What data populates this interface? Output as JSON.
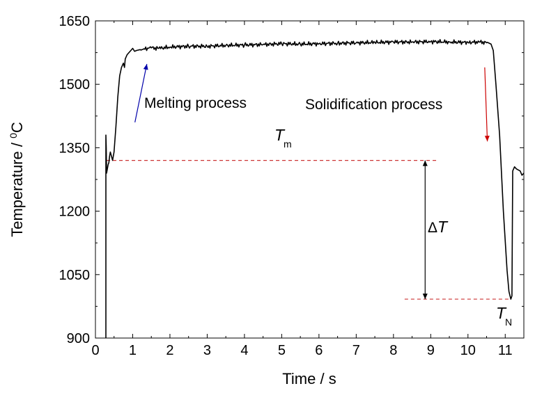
{
  "chart_data": {
    "type": "line",
    "title": "",
    "xlabel": "Time / s",
    "ylabel_main": "Temperature / ",
    "ylabel_sup": "0",
    "ylabel_unit": "C",
    "xlim": [
      0,
      11.5
    ],
    "ylim": [
      900,
      1650
    ],
    "xticks": [
      "0",
      "1",
      "2",
      "3",
      "4",
      "5",
      "6",
      "7",
      "8",
      "9",
      "10",
      "11"
    ],
    "yticks": [
      "900",
      "1050",
      "1200",
      "1350",
      "1500",
      "1650"
    ],
    "grid": false,
    "line_color": "#000000",
    "series": [
      {
        "x": [
          0.28,
          0.28,
          0.29,
          0.3,
          0.32,
          0.34,
          0.36,
          0.38,
          0.4,
          0.43,
          0.46,
          0.5,
          0.55,
          0.6,
          0.65,
          0.7,
          0.75,
          0.78,
          0.8,
          0.85,
          0.9,
          0.95,
          1.0,
          1.05,
          1.1,
          1.2,
          1.3,
          1.5,
          1.7,
          2.0,
          2.5,
          3.0,
          3.5,
          4.0,
          4.5,
          5.0,
          5.5,
          6.0,
          6.5,
          7.0,
          7.5,
          8.0,
          8.5,
          9.0,
          9.5,
          10.0,
          10.3,
          10.55,
          10.62,
          10.68,
          10.75,
          10.85,
          10.95,
          11.05,
          11.1,
          11.15,
          11.18,
          11.2,
          11.25,
          11.3,
          11.4,
          11.45,
          11.5
        ],
        "y": [
          900,
          1380,
          1350,
          1290,
          1300,
          1310,
          1315,
          1330,
          1340,
          1330,
          1320,
          1340,
          1400,
          1470,
          1520,
          1540,
          1550,
          1540,
          1560,
          1570,
          1575,
          1580,
          1585,
          1578,
          1580,
          1582,
          1584,
          1586,
          1585,
          1588,
          1590,
          1590,
          1592,
          1593,
          1594,
          1596,
          1595,
          1596,
          1597,
          1598,
          1599,
          1600,
          1600,
          1601,
          1600,
          1599,
          1600,
          1598,
          1595,
          1580,
          1500,
          1380,
          1200,
          1060,
          1010,
          992,
          1000,
          1295,
          1305,
          1300,
          1295,
          1285,
          1290
        ]
      }
    ],
    "annotations": {
      "melting": "Melting process",
      "solidification": "Solidification process",
      "tm_symbol": "T",
      "tm_sub": "m",
      "tn_symbol": "T",
      "tn_sub": "N",
      "delta_symbol": "Δ",
      "delta_var": "T"
    },
    "markers": {
      "tm_value": 1320,
      "tn_value": 992,
      "tm_x_range": [
        0.3,
        9.15
      ],
      "tn_x_range": [
        8.3,
        11.15
      ],
      "delta_x": 8.85,
      "melting_arrow": {
        "from": [
          1.06,
          1410
        ],
        "to": [
          1.38,
          1548
        ],
        "color": "#0000aa"
      },
      "solid_arrow": {
        "from": [
          10.45,
          1540
        ],
        "to": [
          10.52,
          1365
        ],
        "color": "#cc0000"
      },
      "dash_color": "#cc3333"
    }
  }
}
